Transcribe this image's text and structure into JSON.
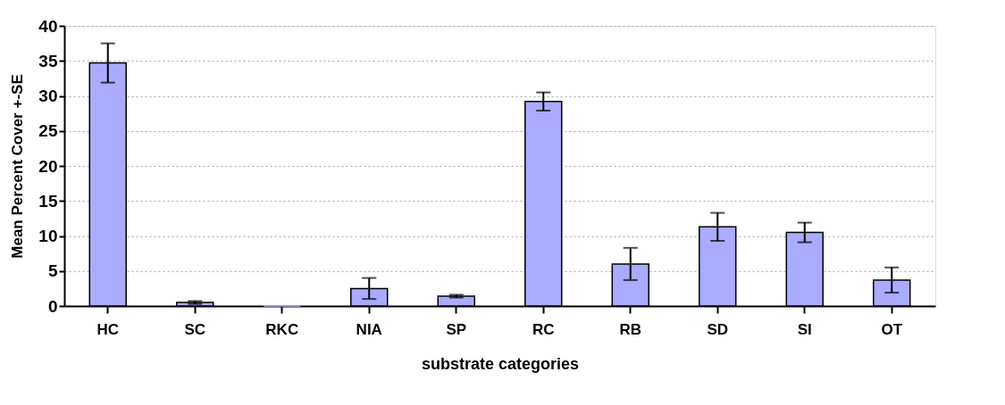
{
  "chart_data": {
    "type": "bar",
    "xlabel": "substrate categories",
    "ylabel": "Mean Percent Cover +-SE",
    "categories": [
      "HC",
      "SC",
      "RKC",
      "NIA",
      "SP",
      "RC",
      "RB",
      "SD",
      "SI",
      "OT"
    ],
    "values": [
      34.7,
      0.5,
      0,
      2.5,
      1.4,
      29.2,
      6.0,
      11.3,
      10.5,
      3.7
    ],
    "errors": [
      2.8,
      0.2,
      null,
      1.5,
      0.2,
      1.3,
      2.3,
      2.0,
      1.4,
      1.8
    ],
    "color": "#aaaaff",
    "ylim": [
      0,
      40
    ],
    "yticks": [
      0,
      5,
      10,
      15,
      20,
      25,
      30,
      35,
      40
    ],
    "grid": "y"
  }
}
